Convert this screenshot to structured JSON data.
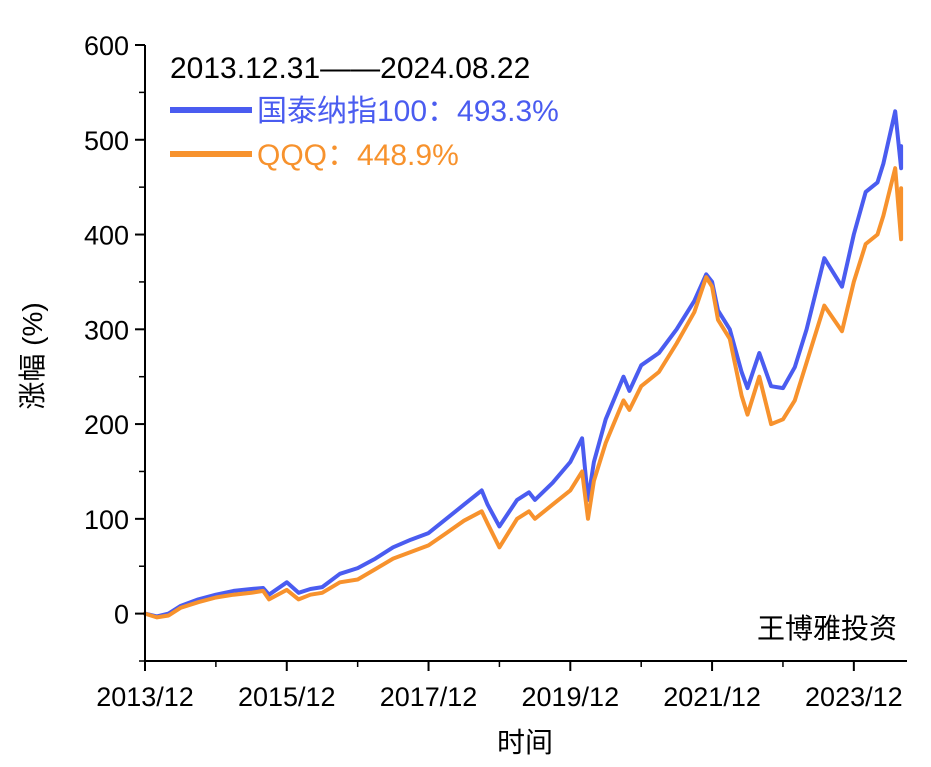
{
  "chart_data": {
    "type": "line",
    "ylabel": "涨幅 (%)",
    "xlabel": "时间",
    "ylim": [
      -50,
      600
    ],
    "yticks": [
      0,
      100,
      200,
      300,
      400,
      500,
      600
    ],
    "xlim": [
      "2013-12",
      "2024-09"
    ],
    "xticks": [
      "2013/12",
      "2015/12",
      "2017/12",
      "2019/12",
      "2021/12",
      "2023/12"
    ],
    "legend_header": "2013.12.31——2024.08.22",
    "legend_position": "top-left",
    "watermark": "王博雅投资",
    "series": [
      {
        "name": "国泰纳指100：493.3%",
        "color": "#4a5cf0",
        "points": [
          [
            "2013-12",
            0
          ],
          [
            "2014-02",
            -3
          ],
          [
            "2014-04",
            0
          ],
          [
            "2014-06",
            8
          ],
          [
            "2014-09",
            15
          ],
          [
            "2014-12",
            20
          ],
          [
            "2015-03",
            24
          ],
          [
            "2015-06",
            26
          ],
          [
            "2015-08",
            27
          ],
          [
            "2015-09",
            20
          ],
          [
            "2015-12",
            33
          ],
          [
            "2016-02",
            22
          ],
          [
            "2016-04",
            26
          ],
          [
            "2016-06",
            28
          ],
          [
            "2016-09",
            42
          ],
          [
            "2016-12",
            48
          ],
          [
            "2017-03",
            58
          ],
          [
            "2017-06",
            70
          ],
          [
            "2017-09",
            78
          ],
          [
            "2017-12",
            85
          ],
          [
            "2018-03",
            100
          ],
          [
            "2018-06",
            115
          ],
          [
            "2018-09",
            130
          ],
          [
            "2018-10",
            115
          ],
          [
            "2018-12",
            92
          ],
          [
            "2019-03",
            120
          ],
          [
            "2019-05",
            128
          ],
          [
            "2019-06",
            120
          ],
          [
            "2019-09",
            138
          ],
          [
            "2019-12",
            160
          ],
          [
            "2020-02",
            185
          ],
          [
            "2020-03",
            120
          ],
          [
            "2020-04",
            160
          ],
          [
            "2020-06",
            205
          ],
          [
            "2020-09",
            250
          ],
          [
            "2020-10",
            235
          ],
          [
            "2020-12",
            262
          ],
          [
            "2021-03",
            275
          ],
          [
            "2021-06",
            300
          ],
          [
            "2021-09",
            330
          ],
          [
            "2021-11",
            358
          ],
          [
            "2021-12",
            350
          ],
          [
            "2022-01",
            320
          ],
          [
            "2022-03",
            300
          ],
          [
            "2022-05",
            255
          ],
          [
            "2022-06",
            238
          ],
          [
            "2022-08",
            275
          ],
          [
            "2022-10",
            240
          ],
          [
            "2022-12",
            238
          ],
          [
            "2023-02",
            260
          ],
          [
            "2023-04",
            300
          ],
          [
            "2023-07",
            375
          ],
          [
            "2023-10",
            345
          ],
          [
            "2023-12",
            400
          ],
          [
            "2024-02",
            445
          ],
          [
            "2024-04",
            455
          ],
          [
            "2024-05",
            475
          ],
          [
            "2024-07",
            530
          ],
          [
            "2024-08",
            470
          ],
          [
            "2024-08",
            493.3
          ]
        ]
      },
      {
        "name": "QQQ：448.9%",
        "color": "#f7922d",
        "points": [
          [
            "2013-12",
            0
          ],
          [
            "2014-02",
            -4
          ],
          [
            "2014-04",
            -2
          ],
          [
            "2014-06",
            6
          ],
          [
            "2014-09",
            12
          ],
          [
            "2014-12",
            17
          ],
          [
            "2015-03",
            20
          ],
          [
            "2015-06",
            22
          ],
          [
            "2015-08",
            24
          ],
          [
            "2015-09",
            15
          ],
          [
            "2015-12",
            25
          ],
          [
            "2016-02",
            15
          ],
          [
            "2016-04",
            20
          ],
          [
            "2016-06",
            22
          ],
          [
            "2016-09",
            33
          ],
          [
            "2016-12",
            36
          ],
          [
            "2017-03",
            47
          ],
          [
            "2017-06",
            58
          ],
          [
            "2017-09",
            65
          ],
          [
            "2017-12",
            72
          ],
          [
            "2018-03",
            85
          ],
          [
            "2018-06",
            98
          ],
          [
            "2018-09",
            108
          ],
          [
            "2018-10",
            95
          ],
          [
            "2018-12",
            70
          ],
          [
            "2019-03",
            100
          ],
          [
            "2019-05",
            108
          ],
          [
            "2019-06",
            100
          ],
          [
            "2019-09",
            115
          ],
          [
            "2019-12",
            130
          ],
          [
            "2020-02",
            150
          ],
          [
            "2020-03",
            100
          ],
          [
            "2020-04",
            140
          ],
          [
            "2020-06",
            180
          ],
          [
            "2020-09",
            225
          ],
          [
            "2020-10",
            215
          ],
          [
            "2020-12",
            240
          ],
          [
            "2021-03",
            255
          ],
          [
            "2021-06",
            285
          ],
          [
            "2021-09",
            318
          ],
          [
            "2021-11",
            355
          ],
          [
            "2021-12",
            345
          ],
          [
            "2022-01",
            310
          ],
          [
            "2022-03",
            290
          ],
          [
            "2022-05",
            230
          ],
          [
            "2022-06",
            210
          ],
          [
            "2022-08",
            250
          ],
          [
            "2022-10",
            200
          ],
          [
            "2022-12",
            205
          ],
          [
            "2023-02",
            225
          ],
          [
            "2023-04",
            265
          ],
          [
            "2023-07",
            325
          ],
          [
            "2023-10",
            298
          ],
          [
            "2023-12",
            350
          ],
          [
            "2024-02",
            390
          ],
          [
            "2024-04",
            400
          ],
          [
            "2024-05",
            420
          ],
          [
            "2024-07",
            470
          ],
          [
            "2024-08",
            395
          ],
          [
            "2024-08",
            448.9
          ]
        ]
      }
    ]
  }
}
